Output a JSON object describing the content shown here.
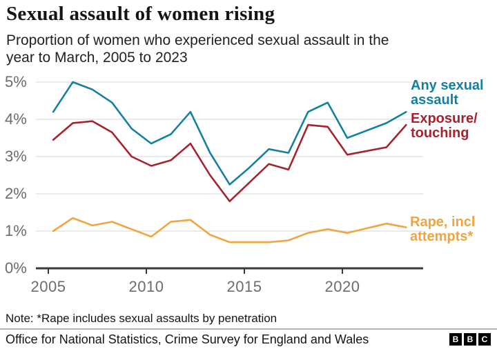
{
  "header": {
    "title": "Sexual assault of women rising",
    "subtitle_line1": "Proportion of women who experienced sexual assault in the",
    "subtitle_line2": "year to March, 2005 to 2023"
  },
  "chart_data": {
    "type": "line",
    "title": "Sexual assault of women rising",
    "subtitle": "Proportion of women who experienced sexual assault in the year to March, 2005 to 2023",
    "unit": "%",
    "ylim": [
      0,
      5
    ],
    "grid": "horizontal",
    "legend_position": "right-of-line-ends",
    "y_ticks": [
      {
        "value": 0,
        "label": "0%"
      },
      {
        "value": 1,
        "label": "1%"
      },
      {
        "value": 2,
        "label": "2%"
      },
      {
        "value": 3,
        "label": "3%"
      },
      {
        "value": 4,
        "label": "4%"
      },
      {
        "value": 5,
        "label": "5%"
      }
    ],
    "x_ticks": [
      {
        "value": 2005,
        "label": "2005"
      },
      {
        "value": 2010,
        "label": "2010"
      },
      {
        "value": 2015,
        "label": "2015"
      },
      {
        "value": 2020,
        "label": "2020"
      }
    ],
    "series": [
      {
        "name": "Any sexual assault",
        "color": "#1380A1",
        "label_lines": [
          "Any sexual",
          "assault"
        ],
        "points": [
          [
            2005,
            4.2
          ],
          [
            2006,
            5.0
          ],
          [
            2007,
            4.8
          ],
          [
            2008,
            4.45
          ],
          [
            2009,
            3.75
          ],
          [
            2010,
            3.35
          ],
          [
            2011,
            3.6
          ],
          [
            2012,
            4.2
          ],
          [
            2013,
            3.1
          ],
          [
            2014,
            2.25
          ],
          [
            2015,
            2.7
          ],
          [
            2016,
            3.2
          ],
          [
            2017,
            3.1
          ],
          [
            2018,
            4.2
          ],
          [
            2019,
            4.45
          ],
          [
            2020,
            3.5
          ],
          [
            2022,
            3.9
          ],
          [
            2023,
            4.2
          ]
        ]
      },
      {
        "name": "Exposure/touching",
        "color": "#A6232E",
        "label_lines": [
          "Exposure/",
          "touching"
        ],
        "points": [
          [
            2005,
            3.45
          ],
          [
            2006,
            3.9
          ],
          [
            2007,
            3.95
          ],
          [
            2008,
            3.65
          ],
          [
            2009,
            3.0
          ],
          [
            2010,
            2.75
          ],
          [
            2011,
            2.9
          ],
          [
            2012,
            3.35
          ],
          [
            2013,
            2.5
          ],
          [
            2014,
            1.8
          ],
          [
            2015,
            2.3
          ],
          [
            2016,
            2.8
          ],
          [
            2017,
            2.65
          ],
          [
            2018,
            3.85
          ],
          [
            2019,
            3.8
          ],
          [
            2020,
            3.05
          ],
          [
            2022,
            3.25
          ],
          [
            2023,
            3.85
          ]
        ]
      },
      {
        "name": "Rape, incl attempts*",
        "color": "#F2A43F",
        "label_lines": [
          "Rape, incl",
          "attempts*"
        ],
        "points": [
          [
            2005,
            1.0
          ],
          [
            2006,
            1.35
          ],
          [
            2007,
            1.15
          ],
          [
            2008,
            1.25
          ],
          [
            2009,
            1.05
          ],
          [
            2010,
            0.85
          ],
          [
            2011,
            1.25
          ],
          [
            2012,
            1.3
          ],
          [
            2013,
            0.9
          ],
          [
            2014,
            0.7
          ],
          [
            2015,
            0.7
          ],
          [
            2016,
            0.7
          ],
          [
            2017,
            0.75
          ],
          [
            2018,
            0.95
          ],
          [
            2019,
            1.05
          ],
          [
            2020,
            0.95
          ],
          [
            2022,
            1.2
          ],
          [
            2023,
            1.1
          ]
        ]
      }
    ]
  },
  "footer": {
    "note": "Note: *Rape includes sexual assaults by penetration",
    "source": "Office for National Statistics, Crime Survey for England and Wales",
    "logo_letters": [
      "B",
      "B",
      "C"
    ]
  }
}
